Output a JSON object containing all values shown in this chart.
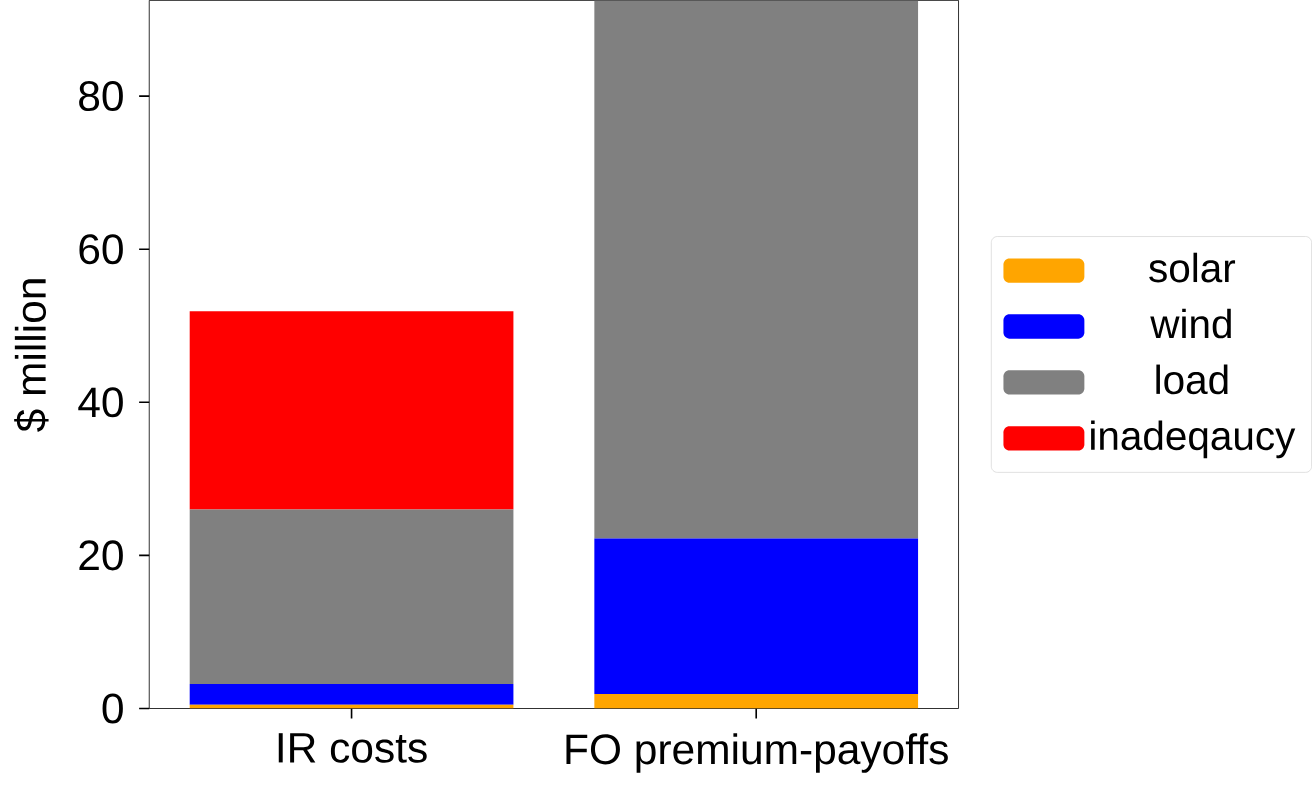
{
  "chart_data": {
    "type": "bar",
    "stacked": true,
    "ylabel": "$ million",
    "categories": [
      "IR costs",
      "FO premium-payoffs"
    ],
    "series": [
      {
        "name": "solar",
        "color": "#ffa500",
        "values": [
          0.5,
          1.9
        ]
      },
      {
        "name": "wind",
        "color": "#0000ff",
        "values": [
          2.7,
          20.3
        ]
      },
      {
        "name": "load",
        "color": "#808080",
        "values": [
          22.8,
          70.3
        ]
      },
      {
        "name": "inadeqaucy",
        "color": "#ff0000",
        "values": [
          25.9,
          0
        ]
      }
    ],
    "ylim": [
      0,
      92.5
    ],
    "yticks": [
      0,
      20,
      40,
      60,
      80
    ],
    "legend": "right"
  }
}
